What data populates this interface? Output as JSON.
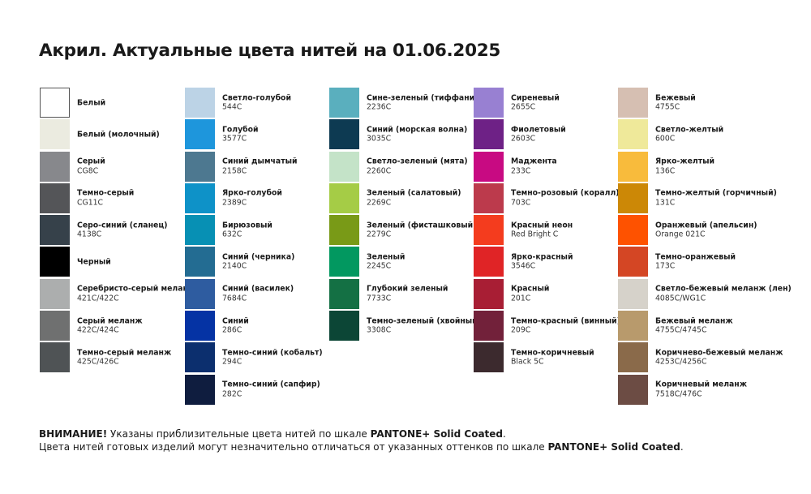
{
  "title": "Акрил. Актуальные цвета нитей на 01.06.2025",
  "columns": [
    [
      {
        "name": "Белый",
        "code": "",
        "color": "#ffffff"
      },
      {
        "name": "Белый (молочный)",
        "code": "",
        "color": "#ebebe0"
      },
      {
        "name": "Серый",
        "code": "CG8C",
        "color": "#87888c"
      },
      {
        "name": "Темно-серый",
        "code": "CG11C",
        "color": "#545558"
      },
      {
        "name": "Серо-синий (сланец)",
        "code": "4138C",
        "color": "#36414a"
      },
      {
        "name": "Черный",
        "code": "",
        "color": "#000000"
      },
      {
        "name": "Серебристо-серый меланж",
        "code": "421C/422C",
        "color": "#acaeae"
      },
      {
        "name": "Серый меланж",
        "code": "422C/424C",
        "color": "#6f7070"
      },
      {
        "name": "Темно-серый меланж",
        "code": "425C/426C",
        "color": "#4f5355"
      }
    ],
    [
      {
        "name": "Светло-голубой",
        "code": "544C",
        "color": "#bcd3e6"
      },
      {
        "name": "Голубой",
        "code": "3577C",
        "color": "#1e96dc"
      },
      {
        "name": "Синий дымчатый",
        "code": "2158C",
        "color": "#4d7890"
      },
      {
        "name": "Ярко-голубой",
        "code": "2389C",
        "color": "#0e92c8"
      },
      {
        "name": "Бирюзовый",
        "code": "632C",
        "color": "#0790b4"
      },
      {
        "name": "Синий (черника)",
        "code": "2140C",
        "color": "#236c92"
      },
      {
        "name": "Синий (василек)",
        "code": "7684C",
        "color": "#2e5ca0"
      },
      {
        "name": "Синий",
        "code": "286C",
        "color": "#0533a4"
      },
      {
        "name": "Темно-синий (кобальт)",
        "code": "294C",
        "color": "#0c2f6e"
      },
      {
        "name": "Темно-синий (сапфир)",
        "code": "282C",
        "color": "#0f1d3f"
      }
    ],
    [
      {
        "name": "Сине-зеленый (тиффани)",
        "code": "2236C",
        "color": "#5aafbe"
      },
      {
        "name": "Синий (морская волна)",
        "code": "3035C",
        "color": "#0d3a52"
      },
      {
        "name": "Светло-зеленый (мята)",
        "code": "2260C",
        "color": "#c4e3c8"
      },
      {
        "name": "Зеленый (салатовый)",
        "code": "2269C",
        "color": "#a5cc46"
      },
      {
        "name": "Зеленый (фисташковый)",
        "code": "2279C",
        "color": "#799a17"
      },
      {
        "name": "Зеленый",
        "code": "2245C",
        "color": "#029860"
      },
      {
        "name": "Глубокий зеленый",
        "code": "7733C",
        "color": "#147044"
      },
      {
        "name": "Темно-зеленый (хвойный)",
        "code": "3308C",
        "color": "#0c4636"
      }
    ],
    [
      {
        "name": "Сиреневый",
        "code": "2655C",
        "color": "#9880d2"
      },
      {
        "name": "Фиолетовый",
        "code": "2603C",
        "color": "#6e2186"
      },
      {
        "name": "Маджента",
        "code": "233C",
        "color": "#c80a82"
      },
      {
        "name": "Темно-розовый (коралл)",
        "code": "703C",
        "color": "#bc3a4c"
      },
      {
        "name": "Красный неон",
        "code": "Red Bright C",
        "color": "#f43c1e"
      },
      {
        "name": "Ярко-красный",
        "code": "3546C",
        "color": "#e02426"
      },
      {
        "name": "Красный",
        "code": "201C",
        "color": "#a81e34"
      },
      {
        "name": "Темно-красный (винный)",
        "code": "209C",
        "color": "#72213a"
      },
      {
        "name": "Темно-коричневый",
        "code": "Black 5C",
        "color": "#3c2a2e"
      }
    ],
    [
      {
        "name": "Бежевый",
        "code": "4755C",
        "color": "#d6bfb2"
      },
      {
        "name": "Светло-желтый",
        "code": "600C",
        "color": "#efe99a"
      },
      {
        "name": "Ярко-желтый",
        "code": "136C",
        "color": "#f8bb3c"
      },
      {
        "name": "Темно-желтый (горчичный)",
        "code": "131C",
        "color": "#cc8806"
      },
      {
        "name": "Оранжевый (апельсин)",
        "code": "Orange 021C",
        "color": "#fe5200"
      },
      {
        "name": "Темно-оранжевый",
        "code": "173C",
        "color": "#d44624"
      },
      {
        "name": "Светло-бежевый меланж (лен)",
        "code": "4085C/WG1C",
        "color": "#d6d2ca"
      },
      {
        "name": "Бежевый меланж",
        "code": "4755C/4745C",
        "color": "#b89a6c"
      },
      {
        "name": "Коричнево-бежевый меланж",
        "code": "4253C/4256C",
        "color": "#8a6a4a"
      },
      {
        "name": "Коричневый меланж",
        "code": "7518C/476C",
        "color": "#6c4c44"
      }
    ]
  ],
  "footer": {
    "line1_bold": "ВНИМАНИЕ!",
    "line1_text": " Указаны приблизительные цвета нитей по шкале ",
    "line1_brand": "PANTONE+ Solid Coated",
    "line1_end": ".",
    "line2_text": "Цвета нитей готовых изделий могут незначительно отличаться от указанных оттенков по шкале ",
    "line2_brand": "PANTONE+ Solid Coated",
    "line2_end": "."
  }
}
